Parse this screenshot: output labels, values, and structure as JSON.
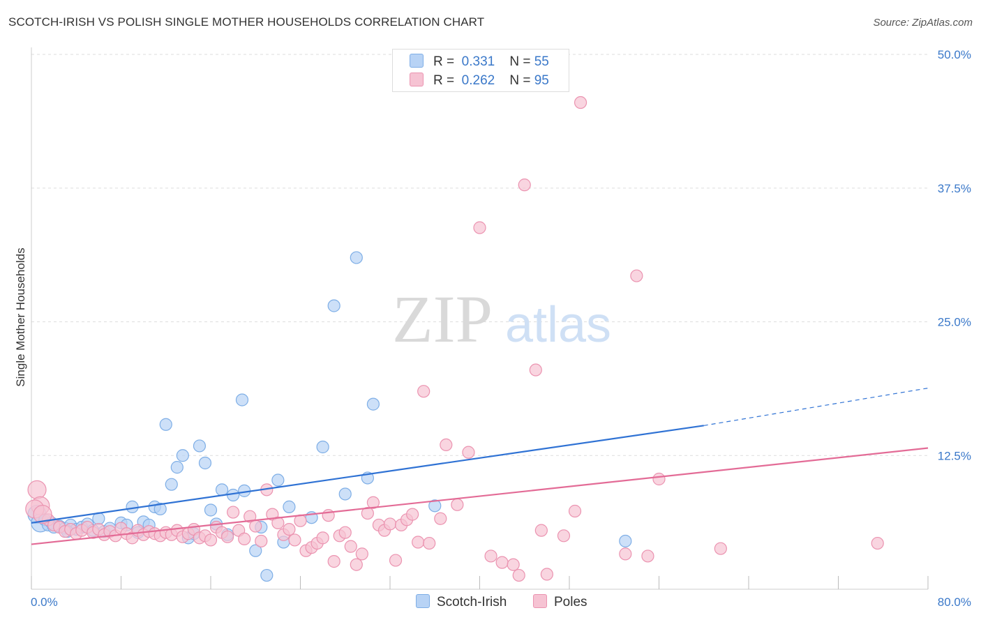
{
  "title": "SCOTCH-IRISH VS POLISH SINGLE MOTHER HOUSEHOLDS CORRELATION CHART",
  "source": "Source: ZipAtlas.com",
  "watermark": {
    "zip": "ZIP",
    "atlas": "atlas"
  },
  "legend": {
    "series1": {
      "r_label": "R =",
      "r_value": "0.331",
      "n_label": "N =",
      "n_value": "55"
    },
    "series2": {
      "r_label": "R =",
      "r_value": "0.262",
      "n_label": "N =",
      "n_value": "95"
    }
  },
  "bottom_legend": {
    "series1": "Scotch-Irish",
    "series2": "Poles"
  },
  "colors": {
    "blue_fill": "#b8d3f5",
    "blue_stroke": "#7eaee6",
    "blue_line": "#2f72d4",
    "pink_fill": "#f6c3d3",
    "pink_stroke": "#eb93b0",
    "pink_line": "#e36b96",
    "tick_label": "#3a78c9",
    "grid": "#dddddd"
  },
  "chart_data": {
    "type": "scatter",
    "title": "SCOTCH-IRISH VS POLISH SINGLE MOTHER HOUSEHOLDS CORRELATION CHART",
    "xlabel": "",
    "ylabel": "Single Mother Households",
    "xlim": [
      0,
      80
    ],
    "ylim": [
      0,
      50
    ],
    "x_tick_labels": [
      "0.0%",
      "80.0%"
    ],
    "y_ticks": [
      12.5,
      25.0,
      37.5,
      50.0
    ],
    "y_tick_labels": [
      "12.5%",
      "25.0%",
      "37.5%",
      "50.0%"
    ],
    "grid": true,
    "legend_position": "top-center",
    "series": [
      {
        "name": "Scotch-Irish",
        "color": "#7eaee6",
        "r": 0.331,
        "n": 55,
        "trend": {
          "x_start": 0,
          "y_start": 6.2,
          "x_solid_end": 60,
          "y_solid_end": 15.3,
          "x_end": 80,
          "y_end": 18.8
        },
        "points": [
          [
            0.5,
            7.0
          ],
          [
            0.8,
            6.2
          ],
          [
            1.2,
            6.5
          ],
          [
            1.5,
            6.0
          ],
          [
            1.8,
            6.2
          ],
          [
            2.0,
            5.8
          ],
          [
            2.5,
            5.9
          ],
          [
            3.0,
            5.7
          ],
          [
            3.5,
            6.0
          ],
          [
            4.0,
            5.6
          ],
          [
            4.5,
            5.8
          ],
          [
            5.0,
            6.1
          ],
          [
            6.0,
            6.6
          ],
          [
            6.5,
            5.4
          ],
          [
            7.0,
            5.7
          ],
          [
            8.0,
            6.2
          ],
          [
            8.5,
            6.0
          ],
          [
            9.0,
            7.7
          ],
          [
            10.0,
            6.3
          ],
          [
            11.0,
            7.7
          ],
          [
            11.5,
            7.5
          ],
          [
            12.0,
            15.4
          ],
          [
            12.5,
            9.8
          ],
          [
            13.0,
            11.4
          ],
          [
            13.5,
            12.5
          ],
          [
            14.0,
            4.8
          ],
          [
            15.0,
            13.4
          ],
          [
            15.5,
            11.8
          ],
          [
            16.0,
            7.4
          ],
          [
            16.5,
            6.1
          ],
          [
            17.0,
            9.3
          ],
          [
            18.0,
            8.8
          ],
          [
            18.8,
            17.7
          ],
          [
            19.0,
            9.2
          ],
          [
            20.0,
            3.6
          ],
          [
            20.5,
            5.8
          ],
          [
            21.0,
            1.3
          ],
          [
            22.0,
            10.2
          ],
          [
            22.5,
            4.4
          ],
          [
            23.0,
            7.7
          ],
          [
            25.0,
            6.7
          ],
          [
            26.0,
            13.3
          ],
          [
            27.0,
            26.5
          ],
          [
            28.0,
            8.9
          ],
          [
            29.0,
            31.0
          ],
          [
            30.0,
            10.4
          ],
          [
            30.5,
            17.3
          ],
          [
            36.0,
            7.8
          ],
          [
            53.0,
            4.5
          ],
          [
            5.5,
            5.5
          ],
          [
            10.5,
            6.0
          ],
          [
            14.5,
            5.2
          ],
          [
            17.5,
            5.1
          ],
          [
            9.5,
            5.3
          ],
          [
            3.2,
            5.4
          ]
        ]
      },
      {
        "name": "Poles",
        "color": "#eb93b0",
        "r": 0.262,
        "n": 95,
        "trend": {
          "x_start": 0,
          "y_start": 4.2,
          "x_end": 80,
          "y_end": 13.2
        },
        "points": [
          [
            0.5,
            9.3
          ],
          [
            0.8,
            7.8
          ],
          [
            1.5,
            6.5
          ],
          [
            2.0,
            6.0
          ],
          [
            2.5,
            5.8
          ],
          [
            3.0,
            5.4
          ],
          [
            3.5,
            5.6
          ],
          [
            4.0,
            5.2
          ],
          [
            4.5,
            5.5
          ],
          [
            5.0,
            5.8
          ],
          [
            5.5,
            5.3
          ],
          [
            6.0,
            5.6
          ],
          [
            6.5,
            5.1
          ],
          [
            7.0,
            5.4
          ],
          [
            7.5,
            5.0
          ],
          [
            8.0,
            5.7
          ],
          [
            8.5,
            5.2
          ],
          [
            9.0,
            4.8
          ],
          [
            9.5,
            5.5
          ],
          [
            10.0,
            5.1
          ],
          [
            10.5,
            5.4
          ],
          [
            11.0,
            5.2
          ],
          [
            11.5,
            5.0
          ],
          [
            12.0,
            5.3
          ],
          [
            12.5,
            5.1
          ],
          [
            13.0,
            5.5
          ],
          [
            13.5,
            4.9
          ],
          [
            14.0,
            5.2
          ],
          [
            14.5,
            5.6
          ],
          [
            15.0,
            4.8
          ],
          [
            15.5,
            5.0
          ],
          [
            16.0,
            4.6
          ],
          [
            16.5,
            5.8
          ],
          [
            17.0,
            5.3
          ],
          [
            17.5,
            4.9
          ],
          [
            18.0,
            7.2
          ],
          [
            18.5,
            5.5
          ],
          [
            19.0,
            4.7
          ],
          [
            19.5,
            6.8
          ],
          [
            20.0,
            5.9
          ],
          [
            20.5,
            4.5
          ],
          [
            21.0,
            9.3
          ],
          [
            21.5,
            7.0
          ],
          [
            22.0,
            6.2
          ],
          [
            22.5,
            5.1
          ],
          [
            23.0,
            5.6
          ],
          [
            23.5,
            4.6
          ],
          [
            24.0,
            6.4
          ],
          [
            24.5,
            3.6
          ],
          [
            25.0,
            3.9
          ],
          [
            25.5,
            4.3
          ],
          [
            26.0,
            4.8
          ],
          [
            26.5,
            6.9
          ],
          [
            27.0,
            2.6
          ],
          [
            27.5,
            5.0
          ],
          [
            28.0,
            5.3
          ],
          [
            28.5,
            4.0
          ],
          [
            29.0,
            2.3
          ],
          [
            29.5,
            3.3
          ],
          [
            30.0,
            7.1
          ],
          [
            30.5,
            8.1
          ],
          [
            31.0,
            6.0
          ],
          [
            31.5,
            5.5
          ],
          [
            32.0,
            6.1
          ],
          [
            32.5,
            2.7
          ],
          [
            33.0,
            6.0
          ],
          [
            33.5,
            6.5
          ],
          [
            34.0,
            7.0
          ],
          [
            34.5,
            4.4
          ],
          [
            35.0,
            18.5
          ],
          [
            35.5,
            4.3
          ],
          [
            36.5,
            6.6
          ],
          [
            37.0,
            13.5
          ],
          [
            38.0,
            7.9
          ],
          [
            39.0,
            12.8
          ],
          [
            40.0,
            33.8
          ],
          [
            41.0,
            3.1
          ],
          [
            42.0,
            2.5
          ],
          [
            43.0,
            2.3
          ],
          [
            43.5,
            1.3
          ],
          [
            44.0,
            37.8
          ],
          [
            45.0,
            20.5
          ],
          [
            45.5,
            5.5
          ],
          [
            46.0,
            1.4
          ],
          [
            47.5,
            5.0
          ],
          [
            48.5,
            7.3
          ],
          [
            49.0,
            45.5
          ],
          [
            53.0,
            3.3
          ],
          [
            54.0,
            29.3
          ],
          [
            55.0,
            3.1
          ],
          [
            56.0,
            10.3
          ],
          [
            61.5,
            3.8
          ],
          [
            75.5,
            4.3
          ],
          [
            0.3,
            7.5
          ],
          [
            1.0,
            7.0
          ]
        ]
      }
    ]
  }
}
